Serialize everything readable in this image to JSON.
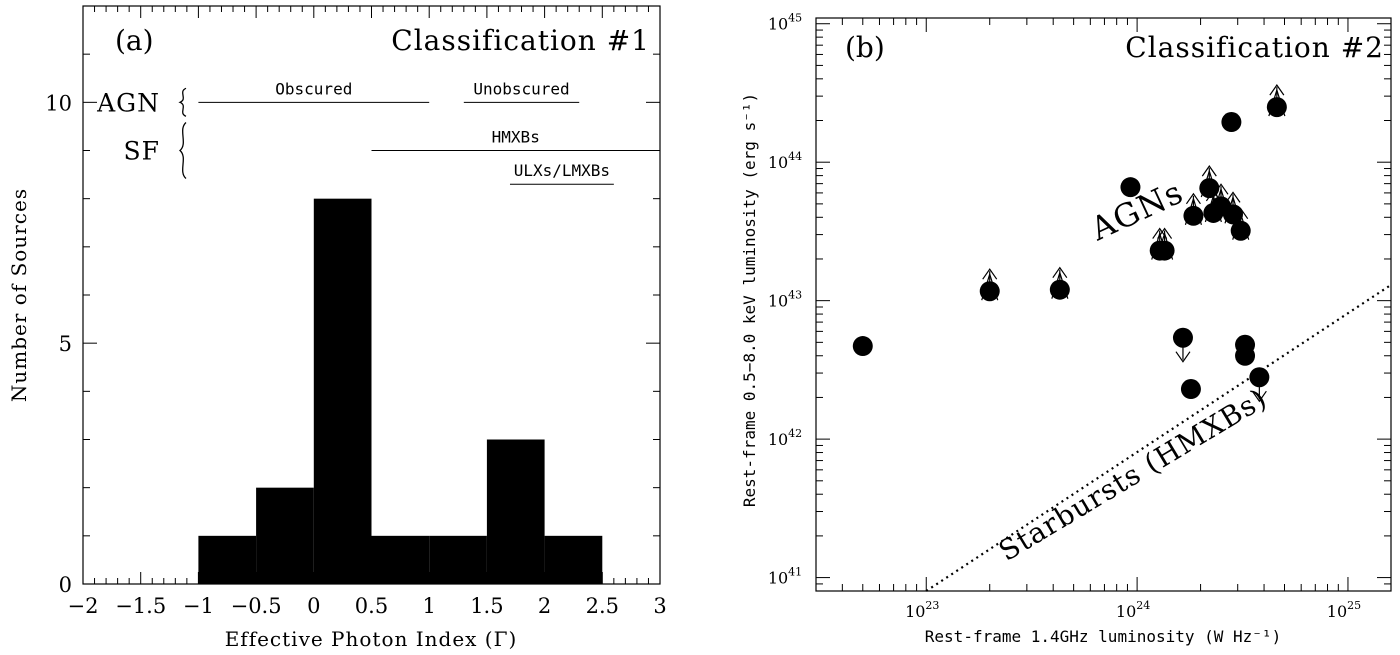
{
  "chart_data": [
    {
      "type": "bar",
      "panel_label": "(a)",
      "title": "Classification #1",
      "xlabel": "Effective Photon Index (Γ)",
      "ylabel": "Number of Sources",
      "xlim": [
        -2,
        3
      ],
      "ylim": [
        0,
        12
      ],
      "x_ticks": [
        "−2",
        "−1.5",
        "−1",
        "−0.5",
        "0",
        "0.5",
        "1",
        "1.5",
        "2",
        "2.5",
        "3"
      ],
      "y_ticks": [
        "0",
        "5",
        "10"
      ],
      "bins": [
        {
          "x0": -1.0,
          "x1": -0.5,
          "count": 1
        },
        {
          "x0": -0.5,
          "x1": 0.0,
          "count": 2
        },
        {
          "x0": 0.0,
          "x1": 0.5,
          "count": 8
        },
        {
          "x0": 0.5,
          "x1": 1.0,
          "count": 1
        },
        {
          "x0": 1.0,
          "x1": 1.5,
          "count": 1
        },
        {
          "x0": 1.5,
          "x1": 2.0,
          "count": 3
        },
        {
          "x0": 2.0,
          "x1": 2.5,
          "count": 1
        }
      ],
      "groups": [
        {
          "label": "AGN",
          "y": 10.0
        },
        {
          "label": "SF",
          "y": 9.0
        }
      ],
      "ranges": [
        {
          "label": "Obscured",
          "x0": -1.0,
          "x1": 1.0,
          "y": 10.0
        },
        {
          "label": "Unobscured",
          "x0": 1.3,
          "x1": 2.3,
          "y": 10.0
        },
        {
          "label": "HMXBs",
          "x0": 0.5,
          "x1": 3.0,
          "y": 9.0
        },
        {
          "label": "ULXs/LMXBs",
          "x0": 1.7,
          "x1": 2.6,
          "y": 8.3
        }
      ]
    },
    {
      "type": "scatter",
      "panel_label": "(b)",
      "title": "Classification #2",
      "xlabel": "Rest-frame 1.4GHz luminosity (W Hz⁻¹)",
      "ylabel": "Rest-frame 0.5−8.0 keV luminosity (erg s⁻¹)",
      "x_scale": "log",
      "y_scale": "log",
      "xlim": [
        3e+22,
        1.6e+25
      ],
      "ylim": [
        8e+40,
        1.1e+45
      ],
      "x_ticks": [
        {
          "value": 1e+23,
          "base": "10",
          "exp": "23"
        },
        {
          "value": 1e+24,
          "base": "10",
          "exp": "24"
        },
        {
          "value": 1e+25,
          "base": "10",
          "exp": "25"
        }
      ],
      "y_ticks": [
        {
          "value": 1e+41,
          "base": "10",
          "exp": "41"
        },
        {
          "value": 1e+42,
          "base": "10",
          "exp": "42"
        },
        {
          "value": 1e+43,
          "base": "10",
          "exp": "43"
        },
        {
          "value": 1e+44,
          "base": "10",
          "exp": "44"
        },
        {
          "value": 1e+45,
          "base": "10",
          "exp": "45"
        }
      ],
      "points": [
        {
          "x": 5e+22,
          "y": 4.7e+42,
          "limit": "none"
        },
        {
          "x": 2e+23,
          "y": 1.17e+43,
          "limit": "lower"
        },
        {
          "x": 4.3e+23,
          "y": 1.2e+43,
          "limit": "lower"
        },
        {
          "x": 9.3e+23,
          "y": 6.6e+43,
          "limit": "none"
        },
        {
          "x": 1.28e+24,
          "y": 2.3e+43,
          "limit": "lower"
        },
        {
          "x": 1.35e+24,
          "y": 2.3e+43,
          "limit": "lower"
        },
        {
          "x": 1.65e+24,
          "y": 5.4e+42,
          "limit": "upper"
        },
        {
          "x": 1.8e+24,
          "y": 2.3e+42,
          "limit": "none"
        },
        {
          "x": 1.85e+24,
          "y": 4.1e+43,
          "limit": "lower"
        },
        {
          "x": 2.2e+24,
          "y": 6.5e+43,
          "limit": "lower"
        },
        {
          "x": 2.3e+24,
          "y": 4.3e+43,
          "limit": "lower"
        },
        {
          "x": 2.5e+24,
          "y": 4.8e+43,
          "limit": "lower"
        },
        {
          "x": 2.8e+24,
          "y": 1.95e+44,
          "limit": "none"
        },
        {
          "x": 2.85e+24,
          "y": 4.2e+43,
          "limit": "lower"
        },
        {
          "x": 3.1e+24,
          "y": 3.2e+43,
          "limit": "lower"
        },
        {
          "x": 3.25e+24,
          "y": 4.8e+42,
          "limit": "none"
        },
        {
          "x": 3.25e+24,
          "y": 4e+42,
          "limit": "none"
        },
        {
          "x": 3.8e+24,
          "y": 2.8e+42,
          "limit": "upper"
        },
        {
          "x": 4.6e+24,
          "y": 2.5e+44,
          "limit": "lower"
        }
      ],
      "relation_line": {
        "label": "Starbursts (HMXBs)",
        "style": "dotted",
        "x": [
          1e+23,
          1.6e+25
        ],
        "y": [
          8e+40,
          1.3e+43
        ]
      },
      "annotations": [
        {
          "text": "AGNs",
          "x": 6.5e+23,
          "y": 2.7e+43
        },
        {
          "text": "Starbursts (HMXBs)",
          "x": 2.4e+23,
          "y": 1.3e+41
        }
      ]
    }
  ]
}
